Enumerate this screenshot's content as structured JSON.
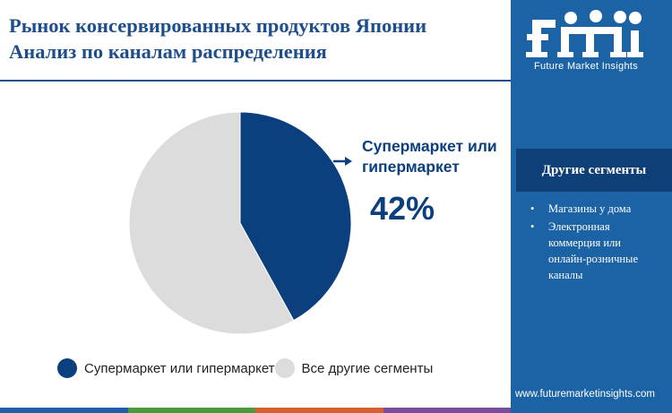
{
  "title": {
    "line1": "Рынок консервированных продуктов Японии",
    "line2": "Анализ по каналам распределения"
  },
  "chart_data": {
    "type": "pie",
    "slices": [
      {
        "label": "Супермаркет или гипермаркет",
        "value": 42,
        "color": "#0b3f7e"
      },
      {
        "label": "Все другие сегменты",
        "value": 58,
        "color": "#dcdcdc"
      }
    ],
    "callout": {
      "label": "Супермаркет или гипермаркет",
      "value_text": "42%"
    },
    "legend": {
      "position": "bottom"
    }
  },
  "sidebar": {
    "brand_name": "Future Market Insights",
    "segments_title": "Другие сегменты",
    "segments": [
      "Магазины у дома",
      "Электронная коммерция или онлайн-розничные каналы"
    ],
    "website": "www.futuremarketinsights.com"
  },
  "colors": {
    "brand_blue": "#1c63a6",
    "dark_blue": "#0b3f7e",
    "title_blue": "#1f4e8c",
    "other_gray": "#dcdcdc",
    "bar": [
      "#1f5ea8",
      "#4a9a3c",
      "#d65f2e",
      "#7a4ca0"
    ]
  }
}
